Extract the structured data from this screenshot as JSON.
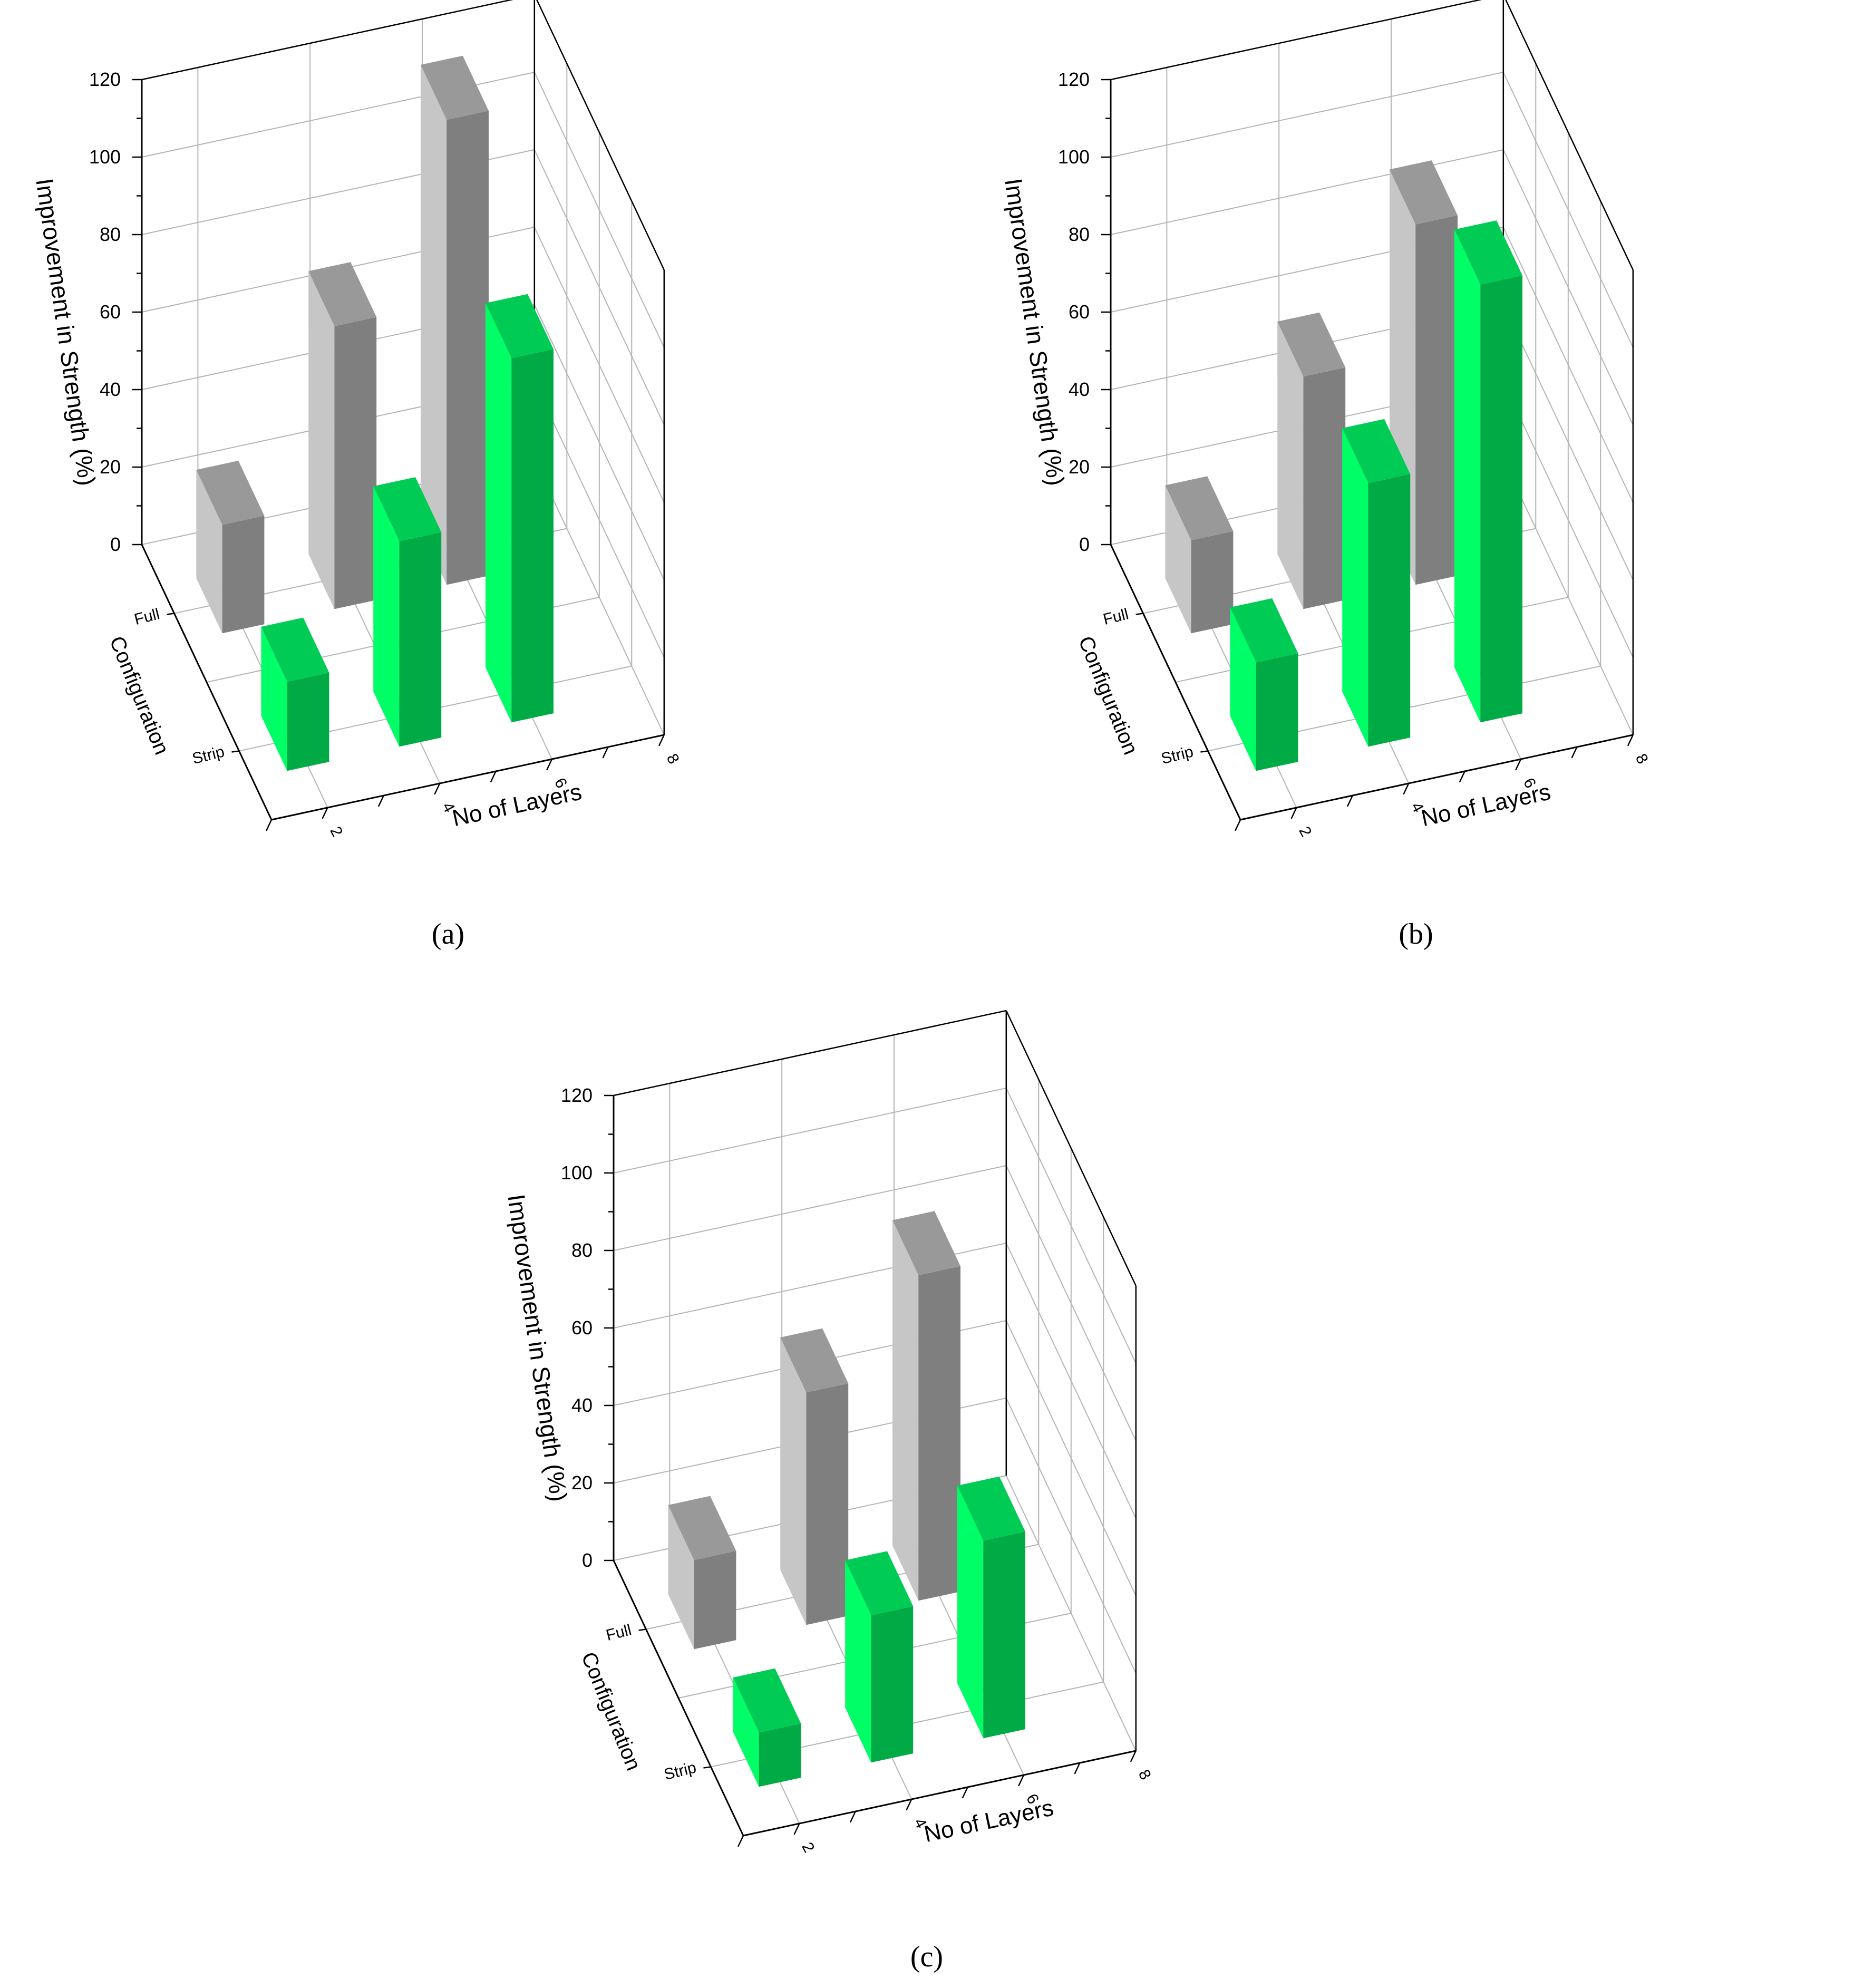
{
  "panels": [
    {
      "caption": "(a)"
    },
    {
      "caption": "(b)"
    },
    {
      "caption": "(c)"
    }
  ],
  "colors": {
    "full_front": "#7f7f7f",
    "full_side": "#c6c6c6",
    "full_top": "#999999",
    "strip_front": "#00aa44",
    "strip_side": "#00ff66",
    "strip_top": "#00cc55",
    "grid": "#b4b4b4",
    "axis": "#000000"
  },
  "chart_data": [
    {
      "type": "bar",
      "subtype": "3d-bar",
      "xlabel": "No of Layers",
      "ylabel": "Configuration",
      "zlabel": "Improvement in Strength (%)",
      "x_ticks": [
        "2",
        "4",
        "6",
        "8"
      ],
      "y_ticks": [
        "Full",
        "Strip"
      ],
      "z_ticks": [
        "0",
        "20",
        "40",
        "60",
        "80",
        "100",
        "120"
      ],
      "xlim": [
        1,
        8
      ],
      "zlim": [
        0,
        120
      ],
      "grid": true,
      "categories": [
        "2",
        "4",
        "6"
      ],
      "series": [
        {
          "values": [
            28,
            73,
            120
          ]
        },
        {
          "values": [
            23,
            53,
            94
          ]
        }
      ]
    },
    {
      "type": "bar",
      "subtype": "3d-bar",
      "xlabel": "No of Layers",
      "ylabel": "Configuration",
      "zlabel": "Improvement in Strength (%)",
      "x_ticks": [
        "2",
        "4",
        "6",
        "8"
      ],
      "y_ticks": [
        "Full",
        "Strip"
      ],
      "z_ticks": [
        "0",
        "20",
        "40",
        "60",
        "80",
        "100",
        "120"
      ],
      "xlim": [
        1,
        8
      ],
      "zlim": [
        0,
        120
      ],
      "grid": true,
      "categories": [
        "2",
        "4",
        "6"
      ],
      "series": [
        {
          "values": [
            24,
            60,
            93
          ]
        },
        {
          "values": [
            28,
            68,
            113
          ]
        }
      ]
    },
    {
      "type": "bar",
      "subtype": "3d-bar",
      "xlabel": "No of Layers",
      "ylabel": "Configuration",
      "zlabel": "Improvement in Strength (%)",
      "x_ticks": [
        "2",
        "4",
        "6",
        "8"
      ],
      "y_ticks": [
        "Full",
        "Strip"
      ],
      "z_ticks": [
        "0",
        "20",
        "40",
        "60",
        "80",
        "100",
        "120"
      ],
      "xlim": [
        1,
        8
      ],
      "zlim": [
        0,
        120
      ],
      "grid": true,
      "categories": [
        "2",
        "4",
        "6"
      ],
      "series": [
        {
          "values": [
            23,
            60,
            84
          ]
        },
        {
          "values": [
            14,
            38,
            51
          ]
        }
      ]
    }
  ]
}
